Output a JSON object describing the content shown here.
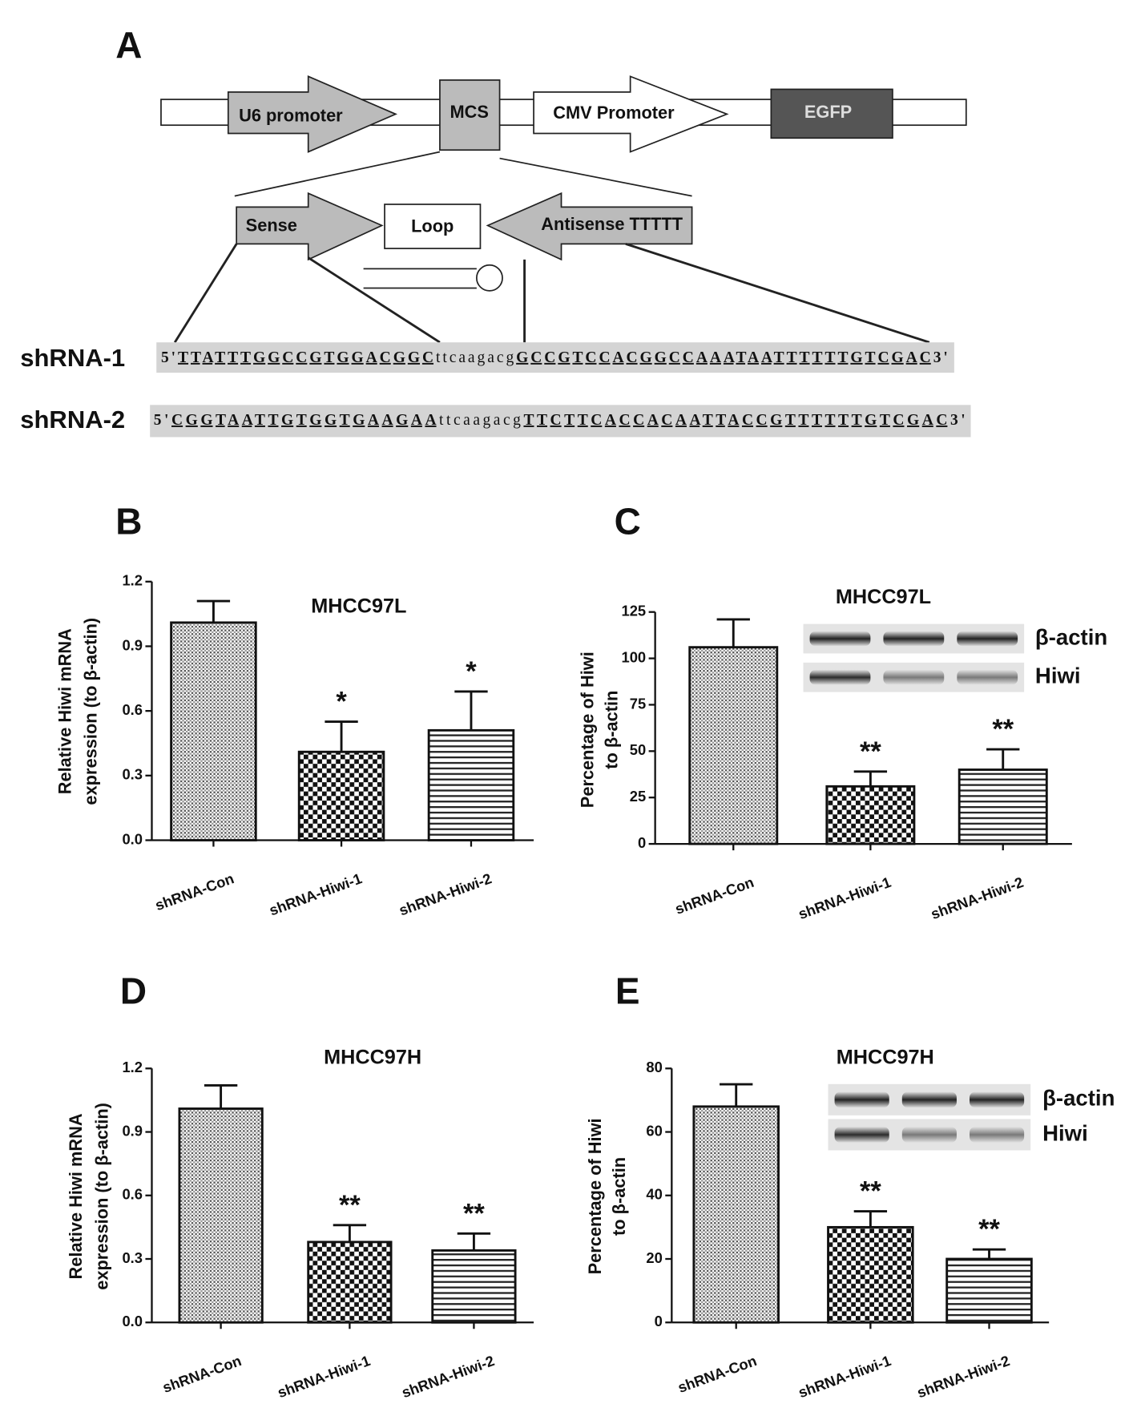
{
  "diagram": {
    "panel": "A",
    "vector": {
      "u6": "U6 promoter",
      "mcs": "MCS",
      "cmv": "CMV Promoter",
      "egfp": "EGFP"
    },
    "insert": {
      "sense": "Sense",
      "loop": "Loop",
      "antisense": "Antisense TTTTT"
    },
    "sequences": [
      {
        "label": "shRNA-1",
        "parts": [
          "5'",
          "TTATTTGGCCGTGGACGGC",
          "ttcaagacg",
          "GCCGTCCACGGCCAAATAATTTTTTGTCGAC",
          "3'"
        ]
      },
      {
        "label": "shRNA-2",
        "parts": [
          "5'",
          "CGGTAATTGTGGTGAAGAA",
          "ttcaagacg",
          "TTCTTCACCACAATTACCGTTTTTTGTCGAC",
          "3'"
        ]
      }
    ]
  },
  "chart_data": [
    {
      "type": "bar",
      "panel": "B",
      "title": "MHCC97L",
      "y_label": [
        "Relative Hiwi mRNA",
        "expression (to  β-actin)"
      ],
      "categories": [
        "shRNA-Con",
        "shRNA-Hiwi-1",
        "shRNA-Hiwi-2"
      ],
      "values": [
        1.01,
        0.41,
        0.51
      ],
      "errors": [
        0.1,
        0.14,
        0.18
      ],
      "annotations": [
        {
          "category": "shRNA-Hiwi-1",
          "text": "*"
        },
        {
          "category": "shRNA-Hiwi-2",
          "text": "*"
        }
      ],
      "ylim": [
        0,
        1.2
      ],
      "yticks": [
        {
          "value": 0,
          "label": "0.0"
        },
        0.3,
        0.6,
        0.9,
        1.2
      ]
    },
    {
      "type": "bar",
      "panel": "C",
      "title": "MHCC97L",
      "y_label": [
        "Percentage of Hiwi",
        "to β-actin"
      ],
      "categories": [
        "shRNA-Con",
        "shRNA-Hiwi-1",
        "shRNA-Hiwi-2"
      ],
      "values": [
        106,
        31,
        40
      ],
      "errors": [
        15,
        8,
        11
      ],
      "annotations": [
        {
          "category": "shRNA-Hiwi-1",
          "text": "**"
        },
        {
          "category": "shRNA-Hiwi-2",
          "text": "**"
        }
      ],
      "blot_labels": [
        "β-actin",
        "Hiwi"
      ],
      "ylim": [
        0,
        125
      ],
      "yticks": [
        0,
        25,
        50,
        75,
        100,
        125
      ]
    },
    {
      "type": "bar",
      "panel": "D",
      "title": "MHCC97H",
      "y_label": [
        "Relative Hiwi mRNA",
        "expression (to  β-actin)"
      ],
      "categories": [
        "shRNA-Con",
        "shRNA-Hiwi-1",
        "shRNA-Hiwi-2"
      ],
      "values": [
        1.01,
        0.38,
        0.34
      ],
      "errors": [
        0.11,
        0.08,
        0.08
      ],
      "annotations": [
        {
          "category": "shRNA-Hiwi-1",
          "text": "**"
        },
        {
          "category": "shRNA-Hiwi-2",
          "text": "**"
        }
      ],
      "ylim": [
        0,
        1.2
      ],
      "yticks": [
        {
          "value": 0,
          "label": "0.0"
        },
        0.3,
        0.6,
        0.9,
        1.2
      ]
    },
    {
      "type": "bar",
      "panel": "E",
      "title": "MHCC97H",
      "y_label": [
        "Percentage of Hiwi",
        "to β-actin"
      ],
      "categories": [
        "shRNA-Con",
        "shRNA-Hiwi-1",
        "shRNA-Hiwi-2"
      ],
      "values": [
        68,
        30,
        20
      ],
      "errors": [
        7,
        5,
        3
      ],
      "annotations": [
        {
          "category": "shRNA-Hiwi-1",
          "text": "**"
        },
        {
          "category": "shRNA-Hiwi-2",
          "text": "**"
        }
      ],
      "blot_labels": [
        "β-actin",
        "Hiwi"
      ],
      "ylim": [
        0,
        80
      ],
      "yticks": [
        0,
        20,
        40,
        60,
        80
      ]
    }
  ]
}
